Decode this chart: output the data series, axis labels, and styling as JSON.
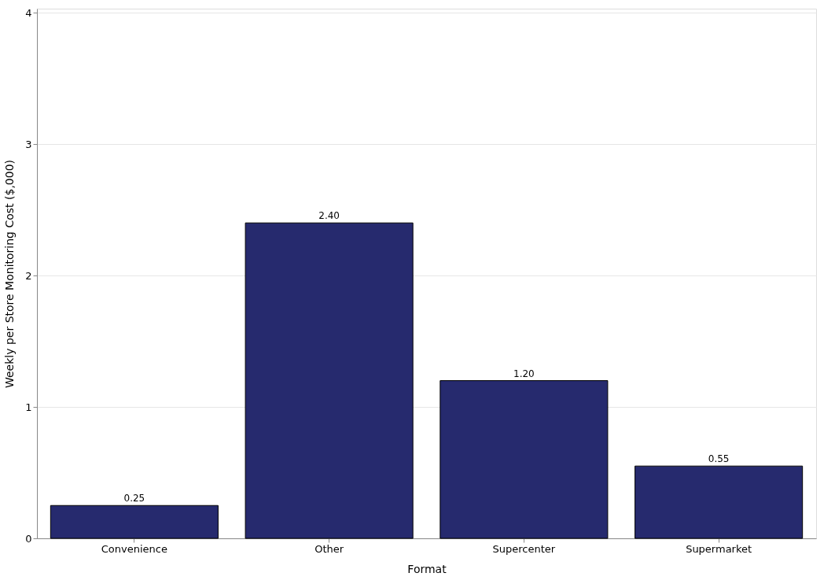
{
  "chart_data": {
    "type": "bar",
    "xlabel": "Format",
    "ylabel": "Weekly per Store Monitoring Cost ($,000)",
    "categories": [
      "Convenience",
      "Other",
      "Supercenter",
      "Supermarket"
    ],
    "values": [
      0.25,
      2.4,
      1.2,
      0.55
    ],
    "value_labels": [
      "0.25",
      "2.40",
      "1.20",
      "0.55"
    ],
    "color": "#262a6e",
    "ylim": [
      0,
      4.03
    ],
    "yticks": [
      0,
      1,
      2,
      3,
      4
    ],
    "grid": "y"
  }
}
